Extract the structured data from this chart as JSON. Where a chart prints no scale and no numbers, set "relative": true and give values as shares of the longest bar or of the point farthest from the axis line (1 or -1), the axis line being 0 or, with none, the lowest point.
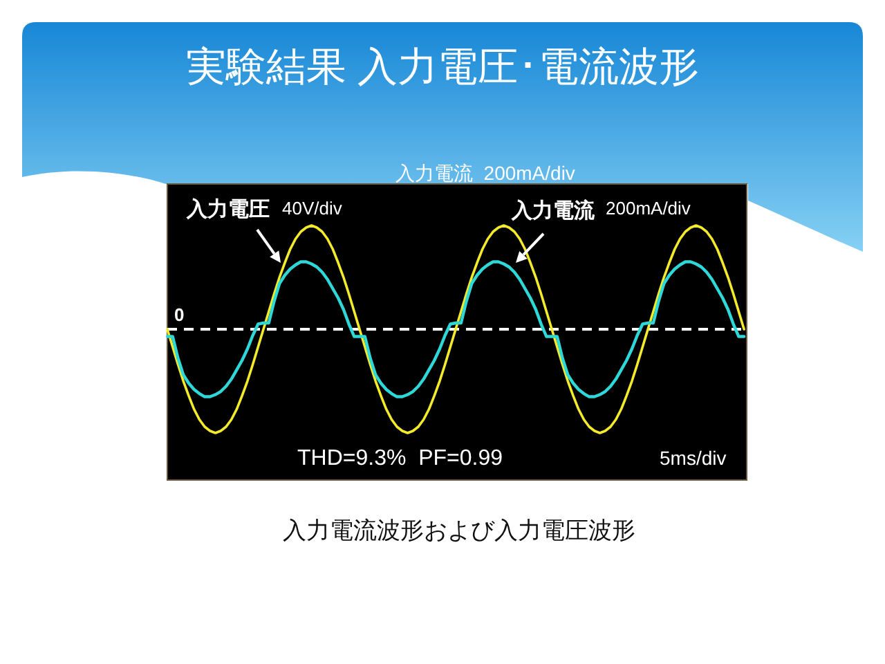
{
  "chart_data": {
    "type": "line",
    "relative": true,
    "title": "実験結果 入力電圧･電流波形",
    "annotations": [
      "40V/div",
      "200mA/div",
      "THD=9.3%  PF=0.99",
      "5ms/div",
      "入力電流  200mA/div",
      "入力電流波形および入力電圧波形"
    ],
    "categories": [
      null,
      null,
      null,
      null,
      null,
      null,
      null,
      null,
      null,
      null,
      null,
      null,
      null,
      null,
      null,
      null,
      null,
      null,
      null,
      null,
      null,
      null,
      null,
      null,
      null,
      null,
      null,
      null,
      null,
      null,
      null,
      null,
      null,
      null,
      null,
      null,
      null,
      null,
      null,
      null,
      null,
      null,
      null,
      null,
      null,
      null,
      null,
      null,
      null,
      null,
      null,
      null,
      null,
      null,
      null,
      null,
      null,
      null,
      null,
      null,
      null,
      null,
      null,
      null,
      null,
      null,
      null,
      null,
      null,
      null,
      null,
      null,
      null,
      null,
      null,
      null,
      null,
      null,
      null,
      null,
      null,
      null,
      null,
      null,
      null,
      null,
      null,
      null,
      null,
      null,
      null,
      null,
      null,
      null,
      null,
      null,
      null,
      null,
      null,
      null,
      null,
      null,
      null,
      null,
      null,
      null,
      null,
      null,
      null
    ],
    "series": [
      {
        "name": "入力電圧",
        "color": "#f2ea2a",
        "values": [
          0,
          -0.17,
          -0.34,
          -0.5,
          -0.64,
          -0.77,
          -0.87,
          -0.94,
          -0.98,
          -1,
          -0.98,
          -0.94,
          -0.87,
          -0.77,
          -0.64,
          -0.5,
          -0.34,
          -0.17,
          0,
          0.17,
          0.34,
          0.5,
          0.64,
          0.77,
          0.87,
          0.94,
          0.98,
          1,
          0.98,
          0.94,
          0.87,
          0.77,
          0.64,
          0.5,
          0.34,
          0.17,
          0,
          -0.17,
          -0.34,
          -0.5,
          -0.64,
          -0.77,
          -0.87,
          -0.94,
          -0.98,
          -1,
          -0.98,
          -0.94,
          -0.87,
          -0.77,
          -0.64,
          -0.5,
          -0.34,
          -0.17,
          0,
          0.17,
          0.34,
          0.5,
          0.64,
          0.77,
          0.87,
          0.94,
          0.98,
          1,
          0.98,
          0.94,
          0.87,
          0.77,
          0.64,
          0.5,
          0.34,
          0.17,
          0,
          -0.17,
          -0.34,
          -0.5,
          -0.64,
          -0.77,
          -0.87,
          -0.94,
          -0.98,
          -1,
          -0.98,
          -0.94,
          -0.87,
          -0.77,
          -0.64,
          -0.5,
          -0.34,
          -0.17,
          0,
          0.17,
          0.34,
          0.5,
          0.64,
          0.77,
          0.87,
          0.94,
          0.98,
          1,
          0.98,
          0.94,
          0.87,
          0.77,
          0.64,
          0.5,
          0.34,
          0.17,
          0
        ]
      },
      {
        "name": "入力電流",
        "color": "#2fd8d8",
        "values": [
          -0.07,
          -0.07,
          -0.28,
          -0.44,
          -0.52,
          -0.58,
          -0.62,
          -0.65,
          -0.65,
          -0.63,
          -0.6,
          -0.55,
          -0.48,
          -0.39,
          -0.3,
          -0.19,
          -0.06,
          0.05,
          0.06,
          0.06,
          0.27,
          0.44,
          0.52,
          0.58,
          0.62,
          0.65,
          0.65,
          0.63,
          0.6,
          0.55,
          0.48,
          0.39,
          0.3,
          0.19,
          0.05,
          -0.07,
          -0.07,
          -0.07,
          -0.28,
          -0.44,
          -0.52,
          -0.58,
          -0.62,
          -0.65,
          -0.65,
          -0.63,
          -0.6,
          -0.55,
          -0.48,
          -0.39,
          -0.3,
          -0.19,
          -0.06,
          0.05,
          0.06,
          0.06,
          0.27,
          0.44,
          0.52,
          0.58,
          0.62,
          0.65,
          0.65,
          0.63,
          0.6,
          0.55,
          0.48,
          0.39,
          0.3,
          0.19,
          0.05,
          -0.07,
          -0.07,
          -0.07,
          -0.28,
          -0.44,
          -0.52,
          -0.58,
          -0.62,
          -0.65,
          -0.65,
          -0.63,
          -0.6,
          -0.55,
          -0.48,
          -0.39,
          -0.3,
          -0.19,
          -0.06,
          0.05,
          0.06,
          0.06,
          0.27,
          0.44,
          0.52,
          0.58,
          0.62,
          0.65,
          0.65,
          0.63,
          0.6,
          0.55,
          0.48,
          0.39,
          0.3,
          0.19,
          0.05,
          -0.07,
          -0.07
        ]
      }
    ],
    "ref_lines": [
      {
        "axis": "y",
        "value": 0,
        "label": "0",
        "color": "#ffffff",
        "line_style": "dashed"
      }
    ]
  }
}
